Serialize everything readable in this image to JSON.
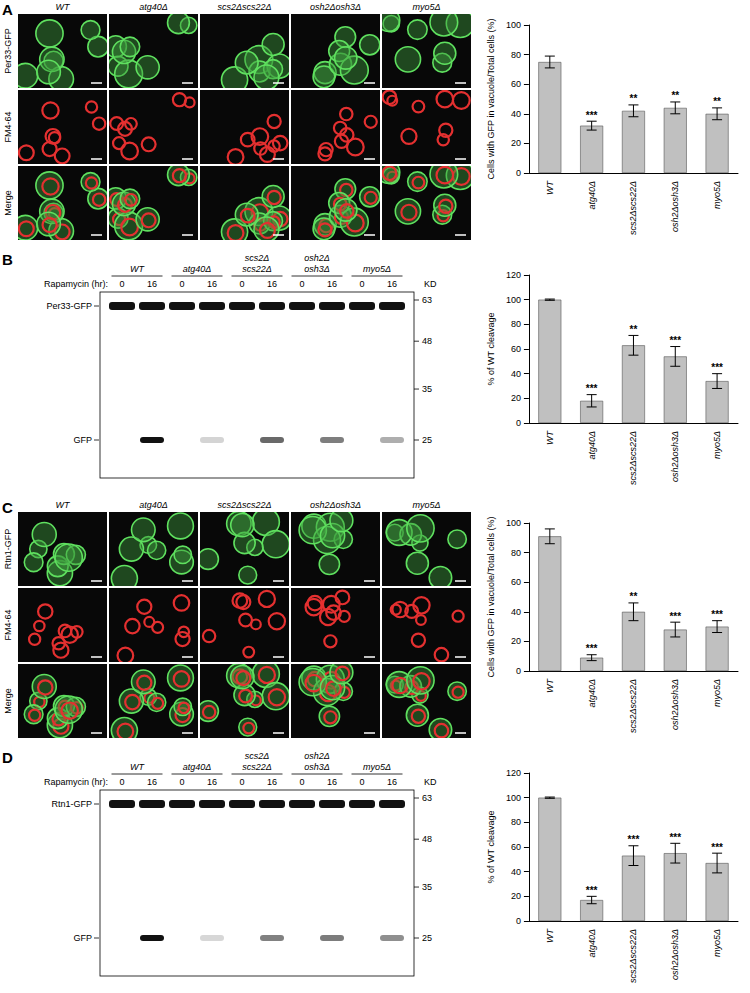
{
  "panels": [
    {
      "letter": "A",
      "micrograph": {
        "columns": [
          "WT",
          "atg40Δ",
          "scs2Δscs22Δ",
          "osh2Δosh3Δ",
          "myo5Δ"
        ],
        "rows": [
          "Per33-GFP",
          "FM4-64",
          "Merge"
        ]
      }
    },
    {
      "letter": "B",
      "blot": {
        "strains": [
          [
            "WT"
          ],
          [
            "atg40Δ"
          ],
          [
            "scs2Δ",
            "scs22Δ"
          ],
          [
            "osh2Δ",
            "osh3Δ"
          ],
          [
            "myo5Δ"
          ]
        ],
        "treatment_label": "Rapamycin (hr):",
        "timepoints": [
          0,
          16
        ],
        "unit_label": "KD",
        "markers": [
          63,
          48,
          35,
          25
        ],
        "bands": [
          "Per33-GFP",
          "GFP"
        ]
      }
    },
    {
      "letter": "C",
      "micrograph": {
        "columns": [
          "WT",
          "atg40Δ",
          "scs2Δscs22Δ",
          "osh2Δosh3Δ",
          "myo5Δ"
        ],
        "rows": [
          "Rtn1-GFP",
          "FM4-64",
          "Merge"
        ]
      }
    },
    {
      "letter": "D",
      "blot": {
        "strains": [
          [
            "WT"
          ],
          [
            "atg40Δ"
          ],
          [
            "scs2Δ",
            "scs22Δ"
          ],
          [
            "osh2Δ",
            "osh3Δ"
          ],
          [
            "myo5Δ"
          ]
        ],
        "treatment_label": "Rapamycin (hr):",
        "timepoints": [
          0,
          16
        ],
        "unit_label": "KD",
        "markers": [
          63,
          48,
          35,
          25
        ],
        "bands": [
          "Rtn1-GFP",
          "GFP"
        ]
      }
    }
  ],
  "chart_data": [
    {
      "type": "bar",
      "ylabel": "Cells with GFP in vacuole/Total cells (%)",
      "categories": [
        "WT",
        "atg40Δ",
        "scs2Δscs22Δ",
        "osh2Δosh3Δ",
        "myo5Δ"
      ],
      "values": [
        75,
        32,
        42,
        44,
        40
      ],
      "errors": [
        4,
        3,
        4,
        4,
        4
      ],
      "significance": [
        null,
        "***",
        "**",
        "**",
        "**"
      ],
      "color": "#c0c0c0",
      "ylim": [
        0,
        100
      ],
      "yticks": [
        0,
        20,
        40,
        60,
        80,
        100
      ],
      "grid": false
    },
    {
      "type": "bar",
      "ylabel": "% of WT cleavage",
      "categories": [
        "WT",
        "atg40Δ",
        "scs2Δscs22Δ",
        "osh2Δosh3Δ",
        "myo5Δ"
      ],
      "values": [
        100,
        18,
        63,
        54,
        34
      ],
      "errors": [
        0.5,
        5,
        8,
        8,
        6
      ],
      "significance": [
        null,
        "***",
        "**",
        "***",
        "***"
      ],
      "color": "#c0c0c0",
      "ylim": [
        0,
        120
      ],
      "yticks": [
        0,
        20,
        40,
        60,
        80,
        100,
        120
      ],
      "grid": false
    },
    {
      "type": "bar",
      "ylabel": "Cells with GFP in vacuole/Total cells (%)",
      "categories": [
        "WT",
        "atg40Δ",
        "scs2Δscs22Δ",
        "osh2Δosh3Δ",
        "myo5Δ"
      ],
      "values": [
        91,
        9,
        40,
        28,
        30
      ],
      "errors": [
        5,
        2,
        6,
        5,
        4
      ],
      "significance": [
        null,
        "***",
        "**",
        "***",
        "***"
      ],
      "color": "#c0c0c0",
      "ylim": [
        0,
        100
      ],
      "yticks": [
        0,
        20,
        40,
        60,
        80,
        100
      ],
      "grid": false
    },
    {
      "type": "bar",
      "ylabel": "% of WT cleavage",
      "categories": [
        "WT",
        "atg40Δ",
        "scs2Δscs22Δ",
        "osh2Δosh3Δ",
        "myo5Δ"
      ],
      "values": [
        100,
        17,
        53,
        55,
        47
      ],
      "errors": [
        0.5,
        3,
        8,
        8,
        8
      ],
      "significance": [
        null,
        "***",
        "***",
        "***",
        "***"
      ],
      "color": "#c0c0c0",
      "ylim": [
        0,
        120
      ],
      "yticks": [
        0,
        20,
        40,
        60,
        80,
        100,
        120
      ],
      "grid": false
    }
  ]
}
